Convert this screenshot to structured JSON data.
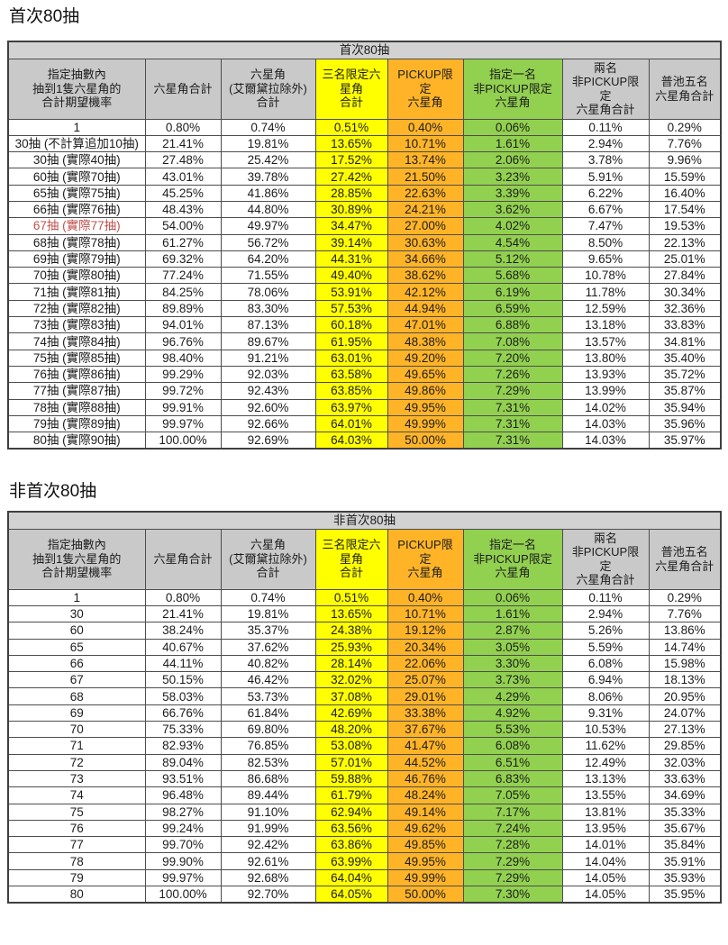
{
  "titles": {
    "first": "首次80抽",
    "second": "非首次80抽"
  },
  "colors": {
    "band_bg": "#d2d2d2",
    "header_bg": "#c9c9c9",
    "yellow": "#ffff00",
    "orange": "#ffb428",
    "green": "#92d050",
    "red_text": "#c0504d"
  },
  "tables": [
    {
      "band": "首次80抽",
      "headers": [
        "指定抽數內\n抽到1隻六星角的\n合計期望機率",
        "六星角合計",
        "六星角\n(艾爾黛拉除外)\n合計",
        "三名限定六\n星角\n合計",
        "PICKUP限\n定\n六星角",
        "指定一名\n非PICKUP限定\n六星角",
        "兩名\n非PICKUP限\n定\n六星角合計",
        "普池五名\n六星角合計"
      ],
      "header_fills": [
        "gray",
        "gray",
        "gray",
        "yellow",
        "orange",
        "green",
        "gray",
        "gray"
      ],
      "value_fills": [
        "white",
        "white",
        "yellow",
        "orange",
        "green",
        "white",
        "white"
      ],
      "rows": [
        {
          "label": "1",
          "red": false,
          "values": [
            "0.80%",
            "0.74%",
            "0.51%",
            "0.40%",
            "0.06%",
            "0.11%",
            "0.29%"
          ]
        },
        {
          "label": "30抽 (不計算追加10抽)",
          "red": false,
          "values": [
            "21.41%",
            "19.81%",
            "13.65%",
            "10.71%",
            "1.61%",
            "2.94%",
            "7.76%"
          ]
        },
        {
          "label": "30抽 (實際40抽)",
          "red": false,
          "values": [
            "27.48%",
            "25.42%",
            "17.52%",
            "13.74%",
            "2.06%",
            "3.78%",
            "9.96%"
          ]
        },
        {
          "label": "60抽 (實際70抽)",
          "red": false,
          "values": [
            "43.01%",
            "39.78%",
            "27.42%",
            "21.50%",
            "3.23%",
            "5.91%",
            "15.59%"
          ]
        },
        {
          "label": "65抽 (實際75抽)",
          "red": false,
          "values": [
            "45.25%",
            "41.86%",
            "28.85%",
            "22.63%",
            "3.39%",
            "6.22%",
            "16.40%"
          ]
        },
        {
          "label": "66抽 (實際76抽)",
          "red": false,
          "values": [
            "48.43%",
            "44.80%",
            "30.89%",
            "24.21%",
            "3.62%",
            "6.67%",
            "17.54%"
          ]
        },
        {
          "label": "67抽 (實際77抽)",
          "red": true,
          "values": [
            "54.00%",
            "49.97%",
            "34.47%",
            "27.00%",
            "4.02%",
            "7.47%",
            "19.53%"
          ]
        },
        {
          "label": "68抽 (實際78抽)",
          "red": false,
          "values": [
            "61.27%",
            "56.72%",
            "39.14%",
            "30.63%",
            "4.54%",
            "8.50%",
            "22.13%"
          ]
        },
        {
          "label": "69抽 (實際79抽)",
          "red": false,
          "values": [
            "69.32%",
            "64.20%",
            "44.31%",
            "34.66%",
            "5.12%",
            "9.65%",
            "25.01%"
          ]
        },
        {
          "label": "70抽 (實際80抽)",
          "red": false,
          "values": [
            "77.24%",
            "71.55%",
            "49.40%",
            "38.62%",
            "5.68%",
            "10.78%",
            "27.84%"
          ]
        },
        {
          "label": "71抽 (實際81抽)",
          "red": false,
          "values": [
            "84.25%",
            "78.06%",
            "53.91%",
            "42.12%",
            "6.19%",
            "11.78%",
            "30.34%"
          ]
        },
        {
          "label": "72抽 (實際82抽)",
          "red": false,
          "values": [
            "89.89%",
            "83.30%",
            "57.53%",
            "44.94%",
            "6.59%",
            "12.59%",
            "32.36%"
          ]
        },
        {
          "label": "73抽 (實際83抽)",
          "red": false,
          "values": [
            "94.01%",
            "87.13%",
            "60.18%",
            "47.01%",
            "6.88%",
            "13.18%",
            "33.83%"
          ]
        },
        {
          "label": "74抽 (實際84抽)",
          "red": false,
          "values": [
            "96.76%",
            "89.67%",
            "61.95%",
            "48.38%",
            "7.08%",
            "13.57%",
            "34.81%"
          ]
        },
        {
          "label": "75抽 (實際85抽)",
          "red": false,
          "values": [
            "98.40%",
            "91.21%",
            "63.01%",
            "49.20%",
            "7.20%",
            "13.80%",
            "35.40%"
          ]
        },
        {
          "label": "76抽 (實際86抽)",
          "red": false,
          "values": [
            "99.29%",
            "92.03%",
            "63.58%",
            "49.65%",
            "7.26%",
            "13.93%",
            "35.72%"
          ]
        },
        {
          "label": "77抽 (實際87抽)",
          "red": false,
          "values": [
            "99.72%",
            "92.43%",
            "63.85%",
            "49.86%",
            "7.29%",
            "13.99%",
            "35.87%"
          ]
        },
        {
          "label": "78抽 (實際88抽)",
          "red": false,
          "values": [
            "99.91%",
            "92.60%",
            "63.97%",
            "49.95%",
            "7.31%",
            "14.02%",
            "35.94%"
          ]
        },
        {
          "label": "79抽 (實際89抽)",
          "red": false,
          "values": [
            "99.97%",
            "92.66%",
            "64.01%",
            "49.99%",
            "7.31%",
            "14.03%",
            "35.96%"
          ]
        },
        {
          "label": "80抽 (實際90抽)",
          "red": false,
          "values": [
            "100.00%",
            "92.69%",
            "64.03%",
            "50.00%",
            "7.31%",
            "14.03%",
            "35.97%"
          ]
        }
      ]
    },
    {
      "band": "非首次80抽",
      "headers": [
        "指定抽數內\n抽到1隻六星角的\n合計期望機率",
        "六星角合計",
        "六星角\n(艾爾黛拉除外)\n合計",
        "三名限定六\n星角\n合計",
        "PICKUP限\n定\n六星角",
        "指定一名\n非PICKUP限定\n六星角",
        "兩名\n非PICKUP限\n定\n六星角合計",
        "普池五名\n六星角合計"
      ],
      "header_fills": [
        "gray",
        "gray",
        "gray",
        "yellow",
        "orange",
        "green",
        "gray",
        "gray"
      ],
      "value_fills": [
        "white",
        "white",
        "yellow",
        "orange",
        "green",
        "white",
        "white"
      ],
      "rows": [
        {
          "label": "1",
          "red": false,
          "values": [
            "0.80%",
            "0.74%",
            "0.51%",
            "0.40%",
            "0.06%",
            "0.11%",
            "0.29%"
          ]
        },
        {
          "label": "30",
          "red": false,
          "values": [
            "21.41%",
            "19.81%",
            "13.65%",
            "10.71%",
            "1.61%",
            "2.94%",
            "7.76%"
          ]
        },
        {
          "label": "60",
          "red": false,
          "values": [
            "38.24%",
            "35.37%",
            "24.38%",
            "19.12%",
            "2.87%",
            "5.26%",
            "13.86%"
          ]
        },
        {
          "label": "65",
          "red": false,
          "values": [
            "40.67%",
            "37.62%",
            "25.93%",
            "20.34%",
            "3.05%",
            "5.59%",
            "14.74%"
          ]
        },
        {
          "label": "66",
          "red": false,
          "values": [
            "44.11%",
            "40.82%",
            "28.14%",
            "22.06%",
            "3.30%",
            "6.08%",
            "15.98%"
          ]
        },
        {
          "label": "67",
          "red": false,
          "values": [
            "50.15%",
            "46.42%",
            "32.02%",
            "25.07%",
            "3.73%",
            "6.94%",
            "18.13%"
          ]
        },
        {
          "label": "68",
          "red": false,
          "values": [
            "58.03%",
            "53.73%",
            "37.08%",
            "29.01%",
            "4.29%",
            "8.06%",
            "20.95%"
          ]
        },
        {
          "label": "69",
          "red": false,
          "values": [
            "66.76%",
            "61.84%",
            "42.69%",
            "33.38%",
            "4.92%",
            "9.31%",
            "24.07%"
          ]
        },
        {
          "label": "70",
          "red": false,
          "values": [
            "75.33%",
            "69.80%",
            "48.20%",
            "37.67%",
            "5.53%",
            "10.53%",
            "27.13%"
          ]
        },
        {
          "label": "71",
          "red": false,
          "values": [
            "82.93%",
            "76.85%",
            "53.08%",
            "41.47%",
            "6.08%",
            "11.62%",
            "29.85%"
          ]
        },
        {
          "label": "72",
          "red": false,
          "values": [
            "89.04%",
            "82.53%",
            "57.01%",
            "44.52%",
            "6.51%",
            "12.49%",
            "32.03%"
          ]
        },
        {
          "label": "73",
          "red": false,
          "values": [
            "93.51%",
            "86.68%",
            "59.88%",
            "46.76%",
            "6.83%",
            "13.13%",
            "33.63%"
          ]
        },
        {
          "label": "74",
          "red": false,
          "values": [
            "96.48%",
            "89.44%",
            "61.79%",
            "48.24%",
            "7.05%",
            "13.55%",
            "34.69%"
          ]
        },
        {
          "label": "75",
          "red": false,
          "values": [
            "98.27%",
            "91.10%",
            "62.94%",
            "49.14%",
            "7.17%",
            "13.81%",
            "35.33%"
          ]
        },
        {
          "label": "76",
          "red": false,
          "values": [
            "99.24%",
            "91.99%",
            "63.56%",
            "49.62%",
            "7.24%",
            "13.95%",
            "35.67%"
          ]
        },
        {
          "label": "77",
          "red": false,
          "values": [
            "99.70%",
            "92.42%",
            "63.86%",
            "49.85%",
            "7.28%",
            "14.01%",
            "35.84%"
          ]
        },
        {
          "label": "78",
          "red": false,
          "values": [
            "99.90%",
            "92.61%",
            "63.99%",
            "49.95%",
            "7.29%",
            "14.04%",
            "35.91%"
          ]
        },
        {
          "label": "79",
          "red": false,
          "values": [
            "99.97%",
            "92.68%",
            "64.04%",
            "49.99%",
            "7.29%",
            "14.05%",
            "35.93%"
          ]
        },
        {
          "label": "80",
          "red": false,
          "values": [
            "100.00%",
            "92.70%",
            "64.05%",
            "50.00%",
            "7.30%",
            "14.05%",
            "35.95%"
          ]
        }
      ]
    }
  ]
}
